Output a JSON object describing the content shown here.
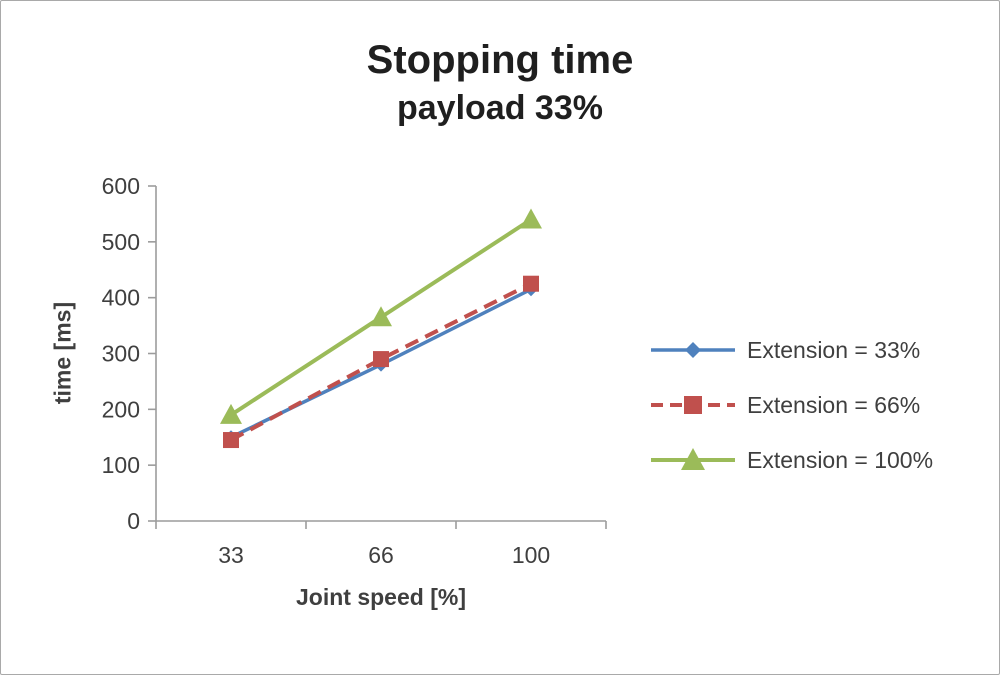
{
  "window": {
    "background": "#ffffff",
    "border_color": "#a9a9a9"
  },
  "chart_data": {
    "type": "line",
    "title": "Stopping time",
    "subtitle": "payload 33%",
    "xlabel": "Joint speed [%]",
    "ylabel": "time [ms]",
    "categories": [
      "33",
      "66",
      "100"
    ],
    "series": [
      {
        "name": "Extension = 33%",
        "values": [
          150,
          280,
          415
        ],
        "color": "#4f81bd",
        "marker": "diamond",
        "marker_size": 7,
        "line_style": "solid",
        "line_width": 3.5
      },
      {
        "name": "Extension = 66%",
        "values": [
          145,
          290,
          425
        ],
        "color": "#c0504d",
        "marker": "square",
        "marker_size": 8,
        "line_style": "dashed",
        "line_width": 4
      },
      {
        "name": "Extension = 100%",
        "values": [
          190,
          365,
          540
        ],
        "color": "#9bbb59",
        "marker": "triangle",
        "marker_size": 10,
        "line_style": "solid",
        "line_width": 4
      }
    ],
    "ylim": [
      0,
      600
    ],
    "yticks": [
      0,
      100,
      200,
      300,
      400,
      500,
      600
    ],
    "grid": false,
    "legend_position": "right",
    "axis_color": "#9c9c9c",
    "text_color": "#3f3f3f"
  }
}
